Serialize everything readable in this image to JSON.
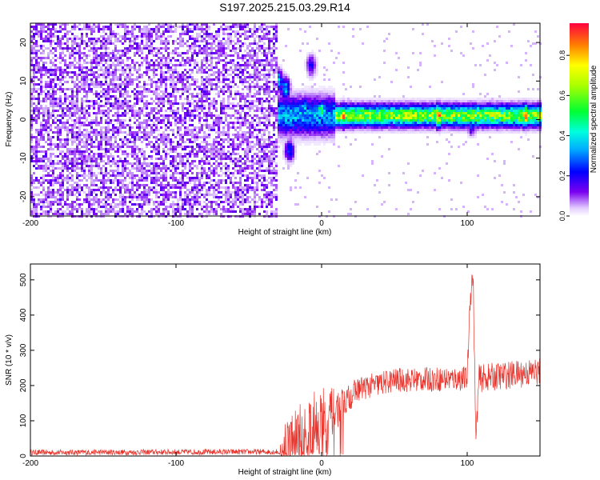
{
  "figure_title": "S197.2025.215.03.29.R14",
  "colors": {
    "snr_line": "#e8342c",
    "axis": "#000000",
    "background": "#ffffff"
  },
  "colorbar": {
    "label": "Normalized spectral amplitude",
    "ticks": [
      "0.0",
      "0.2",
      "0.4",
      "0.6",
      "0.8"
    ],
    "tick_values": [
      0.0,
      0.2,
      0.4,
      0.6,
      0.8
    ],
    "range": [
      0,
      0.96
    ],
    "stops": [
      {
        "v": 0.0,
        "c": "#ffffff"
      },
      {
        "v": 0.04,
        "c": "#e2ccff"
      },
      {
        "v": 0.12,
        "c": "#7a00f0"
      },
      {
        "v": 0.22,
        "c": "#0000ff"
      },
      {
        "v": 0.33,
        "c": "#00aaff"
      },
      {
        "v": 0.42,
        "c": "#00ffdd"
      },
      {
        "v": 0.52,
        "c": "#00ff33"
      },
      {
        "v": 0.65,
        "c": "#aaff00"
      },
      {
        "v": 0.75,
        "c": "#ffff00"
      },
      {
        "v": 0.85,
        "c": "#ff8000"
      },
      {
        "v": 0.96,
        "c": "#ff0040"
      }
    ]
  },
  "chart_data": [
    {
      "type": "heatmap",
      "title": "",
      "xlabel": "Height of straight line (km)",
      "ylabel": "Frequency (Hz)",
      "xlim": [
        -200,
        150
      ],
      "ylim": [
        -25,
        25
      ],
      "xticks": [
        "-200",
        "-100",
        "0",
        "100"
      ],
      "xtick_values": [
        -200,
        -100,
        0,
        100
      ],
      "yticks": [
        "-20",
        "-10",
        "0",
        "10",
        "20"
      ],
      "ytick_values": [
        -20,
        -10,
        0,
        10,
        20
      ],
      "noise_region_x": [
        -200,
        -30
      ],
      "carrier_frequency_hz": 1,
      "features": [
        {
          "x": -30,
          "y": 10,
          "amplitude": 0.45
        },
        {
          "x": -25,
          "y": 8,
          "amplitude": 0.4
        },
        {
          "x": -22,
          "y": -8,
          "amplitude": 0.3
        },
        {
          "x": -12,
          "y": 3,
          "amplitude": 0.4
        },
        {
          "x": -7,
          "y": 14,
          "amplitude": 0.2
        },
        {
          "x": 0,
          "y": 2,
          "amplitude": 0.6
        },
        {
          "x": 15,
          "y": 1,
          "amplitude": 0.85
        },
        {
          "x": 80,
          "y": 1,
          "amplitude": 0.9
        },
        {
          "x": 103,
          "y": -1,
          "amplitude": 0.3
        },
        {
          "x": 140,
          "y": 1,
          "amplitude": 0.85
        }
      ]
    },
    {
      "type": "line",
      "title": "",
      "xlabel": "Height of straight line (km)",
      "ylabel": "SNR (10 * v/v)",
      "xlim": [
        -200,
        150
      ],
      "ylim": [
        0,
        545
      ],
      "xticks": [
        "-200",
        "-100",
        "0",
        "100"
      ],
      "xtick_values": [
        -200,
        -100,
        0,
        100
      ],
      "yticks": [
        "0",
        "100",
        "200",
        "300",
        "400",
        "500"
      ],
      "ytick_values": [
        0,
        100,
        200,
        300,
        400,
        500
      ],
      "series": [
        {
          "name": "",
          "trend_x": [
            -200,
            -30,
            -25,
            -10,
            0,
            10,
            15,
            25,
            50,
            100,
            102,
            104,
            106,
            108,
            150
          ],
          "trend_y": [
            10,
            12,
            40,
            80,
            110,
            130,
            150,
            190,
            215,
            220,
            450,
            520,
            40,
            220,
            240
          ],
          "noise_amplitude": [
            8,
            8,
            60,
            90,
            90,
            60,
            40,
            35,
            35,
            35,
            40,
            40,
            30,
            40,
            40
          ]
        }
      ]
    }
  ]
}
